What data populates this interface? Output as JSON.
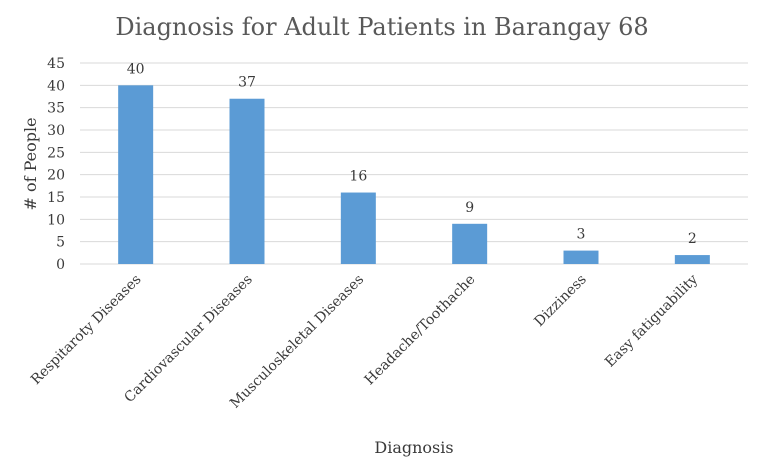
{
  "chart_data": {
    "type": "bar",
    "title": "Diagnosis for Adult Patients in Barangay 68",
    "xlabel": "Diagnosis",
    "ylabel": "# of People",
    "categories": [
      "Respitaroty Diseases",
      "Cardiovascular Diseases",
      "Musculoskeletal Diseases",
      "Headache/Toothache",
      "Dizziness",
      "Easy fatiguability"
    ],
    "values": [
      40,
      37,
      16,
      9,
      3,
      2
    ],
    "ylim": [
      0,
      45
    ],
    "yticks": [
      0,
      5,
      10,
      15,
      20,
      25,
      30,
      35,
      40,
      45
    ],
    "grid": true,
    "data_labels": true,
    "bar_color": "#5b9bd5"
  }
}
